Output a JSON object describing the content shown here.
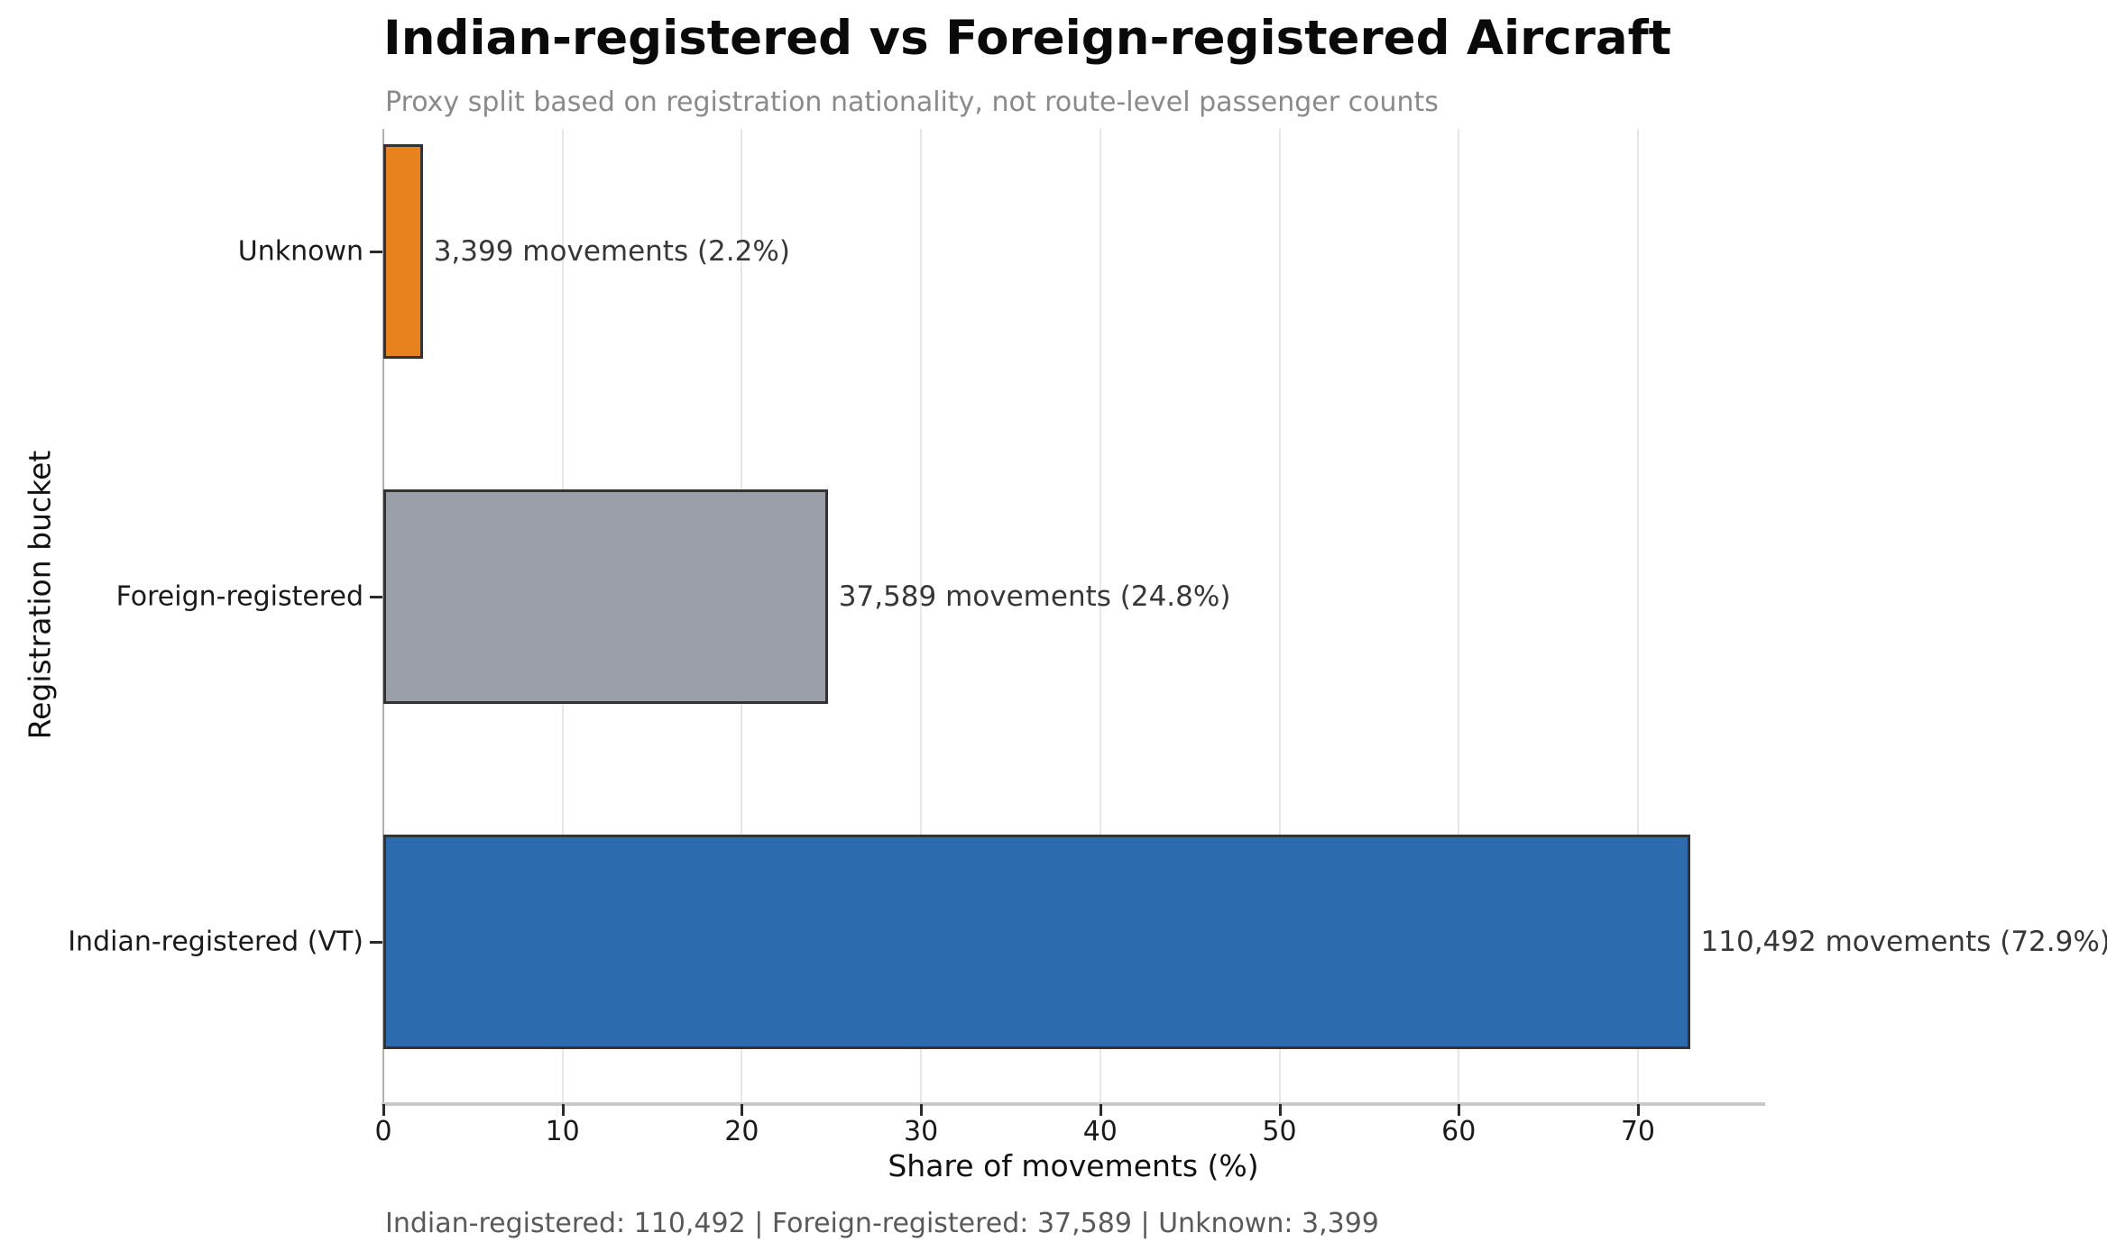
{
  "chart_data": {
    "type": "bar",
    "orientation": "horizontal",
    "title": "Indian-registered vs Foreign-registered Aircraft",
    "subtitle": "Proxy split based on registration nationality, not route-level passenger counts",
    "xlabel": "Share of movements (%)",
    "ylabel": "Registration bucket",
    "categories": [
      "Unknown",
      "Foreign-registered",
      "Indian-registered (VT)"
    ],
    "values": [
      2.2,
      24.8,
      72.9
    ],
    "movements": [
      3399,
      37589,
      110492
    ],
    "annotations": [
      "3,399 movements (2.2%)",
      "37,589 movements (24.8%)",
      "110,492 movements (72.9%)"
    ],
    "bar_colors": [
      "#e8821e",
      "#9ba0a8",
      "#2c6cae"
    ],
    "bar_edge_color": "#333333",
    "xticks": [
      0,
      10,
      20,
      30,
      40,
      50,
      60,
      70
    ],
    "xlim": [
      0,
      77
    ],
    "grid": true,
    "legend_position": "none",
    "footer": "Indian-registered: 110,492 | Foreign-registered: 37,589 | Unknown: 3,399"
  }
}
